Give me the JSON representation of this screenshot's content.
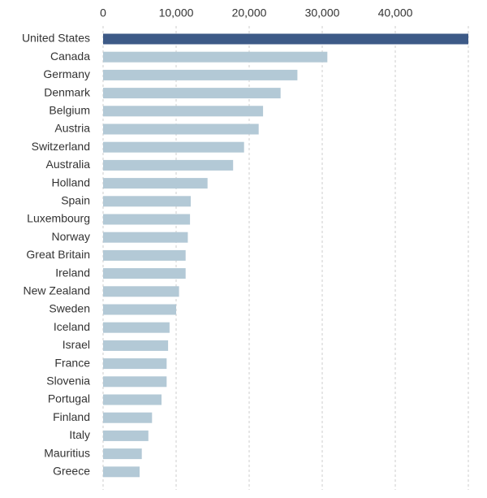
{
  "chart_data": {
    "type": "barh",
    "categories": [
      "United States",
      "Canada",
      "Germany",
      "Denmark",
      "Belgium",
      "Austria",
      "Switzerland",
      "Australia",
      "Holland",
      "Spain",
      "Luxembourg",
      "Norway",
      "Great Britain",
      "Ireland",
      "New Zealand",
      "Sweden",
      "Iceland",
      "Israel",
      "France",
      "Slovenia",
      "Portugal",
      "Finland",
      "Italy",
      "Mauritius",
      "Greece"
    ],
    "values": [
      50000,
      30700,
      26600,
      24300,
      21900,
      21300,
      19300,
      17800,
      14300,
      12000,
      11900,
      11600,
      11300,
      11300,
      10400,
      10000,
      9100,
      8900,
      8700,
      8700,
      8000,
      6700,
      6200,
      5300,
      5000
    ],
    "colors": [
      "#3d5a87",
      "#b3c9d6",
      "#b3c9d6",
      "#b3c9d6",
      "#b3c9d6",
      "#b3c9d6",
      "#b3c9d6",
      "#b3c9d6",
      "#b3c9d6",
      "#b3c9d6",
      "#b3c9d6",
      "#b3c9d6",
      "#b3c9d6",
      "#b3c9d6",
      "#b3c9d6",
      "#b3c9d6",
      "#b3c9d6",
      "#b3c9d6",
      "#b3c9d6",
      "#b3c9d6",
      "#b3c9d6",
      "#b3c9d6",
      "#b3c9d6",
      "#b3c9d6",
      "#b3c9d6"
    ],
    "xlim": [
      0,
      50000
    ],
    "xticks": [
      0,
      {
        "value": 10000,
        "label": "10,000"
      },
      {
        "value": 20000,
        "label": "20,000"
      },
      {
        "value": 30000,
        "label": "30,000"
      },
      {
        "value": 40000,
        "label": "40,000"
      }
    ],
    "grid": true
  }
}
